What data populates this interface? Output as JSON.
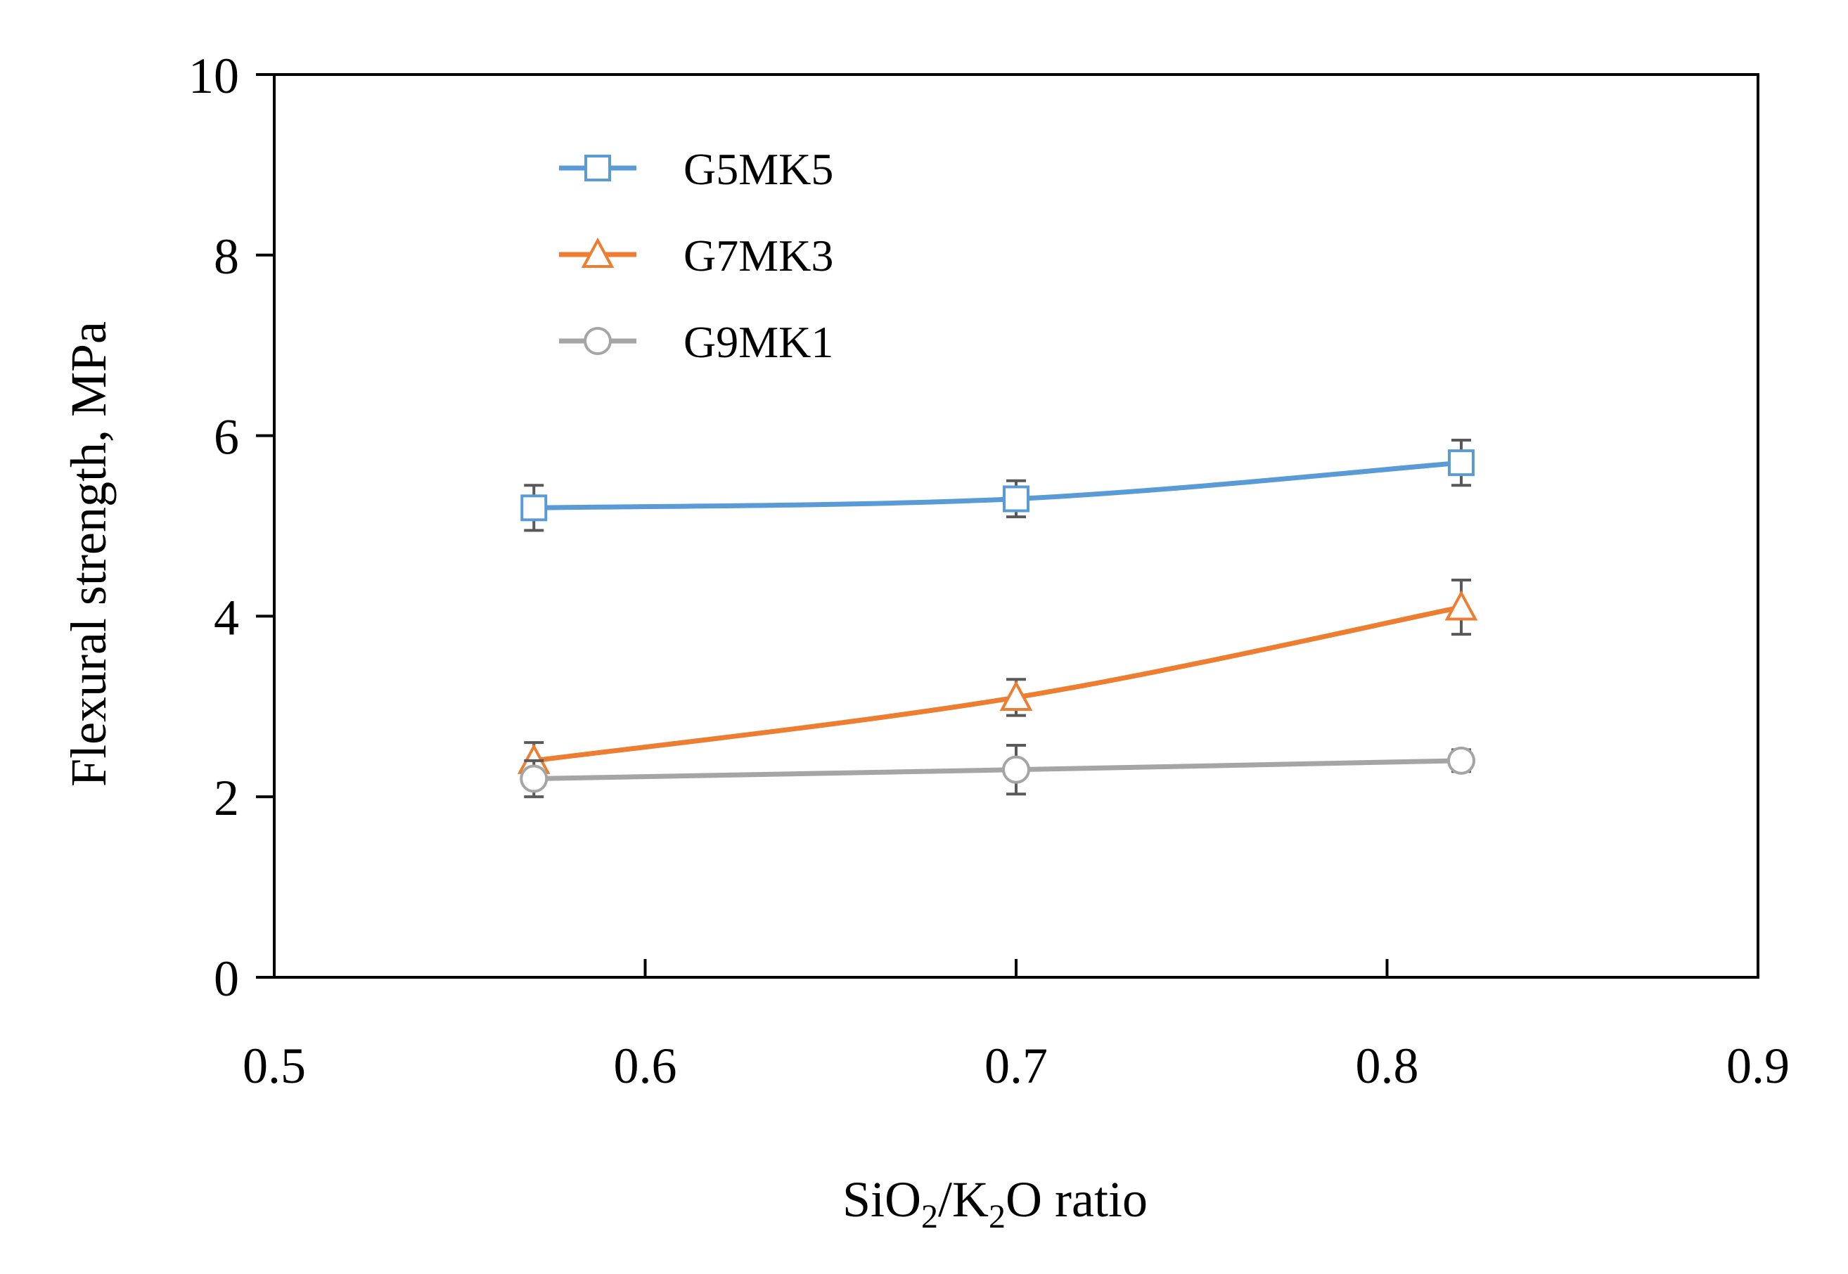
{
  "chart_data": {
    "type": "line",
    "title": "",
    "xlabel": {
      "parts": [
        {
          "text": "SiO",
          "sub": false
        },
        {
          "text": "2",
          "sub": true
        },
        {
          "text": "/K",
          "sub": false
        },
        {
          "text": "2",
          "sub": true
        },
        {
          "text": "O ratio",
          "sub": false
        }
      ]
    },
    "ylabel": "Flexural strength, MPa",
    "xlim": [
      0.5,
      0.9
    ],
    "ylim": [
      0,
      10
    ],
    "xticks": [
      0.5,
      0.6,
      0.7,
      0.8,
      0.9
    ],
    "yticks": [
      0,
      2,
      4,
      6,
      8,
      10
    ],
    "xtick_labels": [
      "0.5",
      "0.6",
      "0.7",
      "0.8",
      "0.9"
    ],
    "ytick_labels": [
      "0",
      "2",
      "4",
      "6",
      "8",
      "10"
    ],
    "grid": false,
    "legend_position": "top-left",
    "x": [
      0.57,
      0.7,
      0.82
    ],
    "series": [
      {
        "name": "G5MK5",
        "values": [
          5.2,
          5.3,
          5.7
        ],
        "errors": [
          0.25,
          0.2,
          0.25
        ],
        "color": "#5B9BD5",
        "marker": "square"
      },
      {
        "name": "G7MK3",
        "values": [
          2.4,
          3.1,
          4.1
        ],
        "errors": [
          0.2,
          0.2,
          0.3
        ],
        "color": "#ED7D31",
        "marker": "triangle"
      },
      {
        "name": "G9MK1",
        "values": [
          2.2,
          2.3,
          2.4
        ],
        "errors": [
          0.2,
          0.27,
          0.12
        ],
        "color": "#A5A5A5",
        "marker": "circle"
      }
    ],
    "errorbar_color": "#595959"
  }
}
